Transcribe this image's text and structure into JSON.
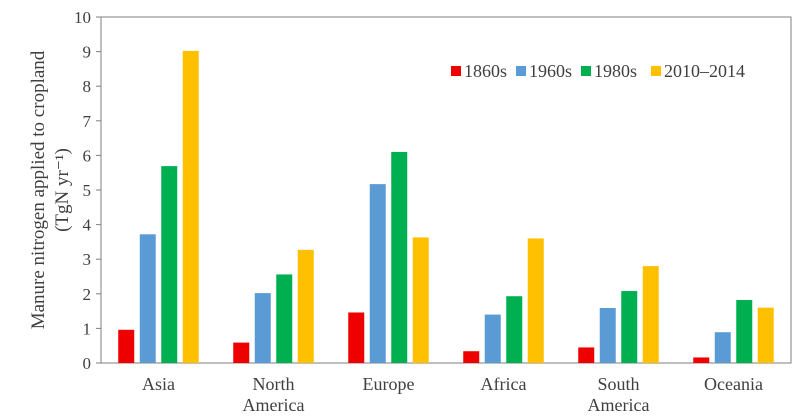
{
  "chart_data": {
    "type": "bar",
    "title": "",
    "xlabel": "",
    "ylabel": [
      "Manure nitrogen applied to cropland",
      "(TgN yr⁻¹)"
    ],
    "ylim": [
      0,
      10
    ],
    "yticks": [
      0,
      1,
      2,
      3,
      4,
      5,
      6,
      7,
      8,
      9,
      10
    ],
    "grid": false,
    "legend_position": "top-right",
    "categories": [
      [
        "Asia"
      ],
      [
        "North",
        "America"
      ],
      [
        "Europe"
      ],
      [
        "Africa"
      ],
      [
        "South",
        "America"
      ],
      [
        "Oceania"
      ]
    ],
    "series": [
      {
        "name": "1860s",
        "color": "#ee0000",
        "values": [
          0.96,
          0.59,
          1.46,
          0.34,
          0.45,
          0.16
        ]
      },
      {
        "name": "1960s",
        "color": "#5b9bd5",
        "values": [
          3.72,
          2.02,
          5.17,
          1.4,
          1.59,
          0.89
        ]
      },
      {
        "name": "1980s",
        "color": "#00b050",
        "values": [
          5.69,
          2.56,
          6.1,
          1.93,
          2.08,
          1.82
        ]
      },
      {
        "name": "2010–2014",
        "color": "#ffc000",
        "values": [
          9.02,
          3.27,
          3.63,
          3.6,
          2.8,
          1.6
        ]
      }
    ]
  }
}
